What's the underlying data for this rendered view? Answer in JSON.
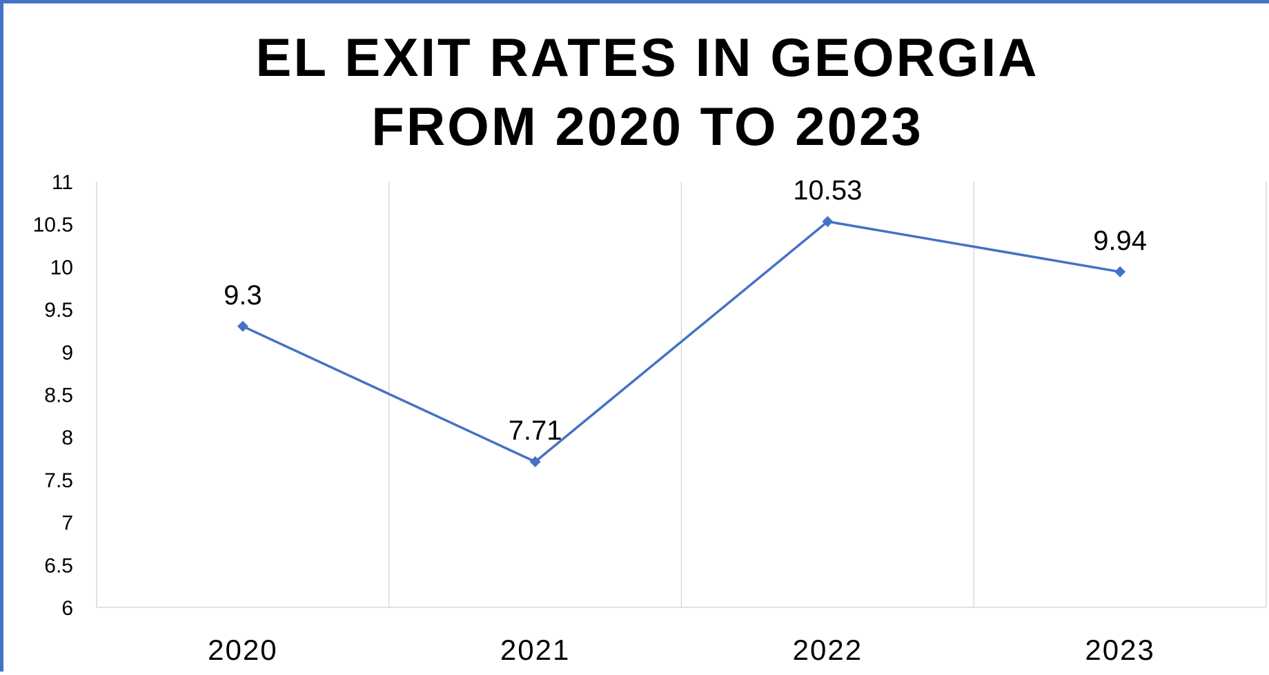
{
  "chart_data": {
    "type": "line",
    "title": "EL EXIT RATES IN GEORGIA FROM 2020 TO 2023",
    "title_lines": [
      "EL EXIT RATES IN GEORGIA",
      "FROM 2020 TO 2023"
    ],
    "categories": [
      "2020",
      "2021",
      "2022",
      "2023"
    ],
    "series": [
      {
        "values": [
          9.3,
          7.71,
          10.53,
          9.94
        ],
        "color": "#4472C4",
        "marker": "diamond",
        "data_labels": [
          "9.3",
          "7.71",
          "10.53",
          "9.94"
        ]
      }
    ],
    "ylim": [
      6,
      11
    ],
    "y_ticks": [
      "6",
      "6.5",
      "7",
      "7.5",
      "8",
      "8.5",
      "9",
      "9.5",
      "10",
      "10.5",
      "11"
    ],
    "xlabel": "",
    "ylabel": "",
    "grid": "vertical",
    "legend": "none",
    "frame_color": "#4472C4",
    "gridline_color": "#D9D9D9"
  }
}
